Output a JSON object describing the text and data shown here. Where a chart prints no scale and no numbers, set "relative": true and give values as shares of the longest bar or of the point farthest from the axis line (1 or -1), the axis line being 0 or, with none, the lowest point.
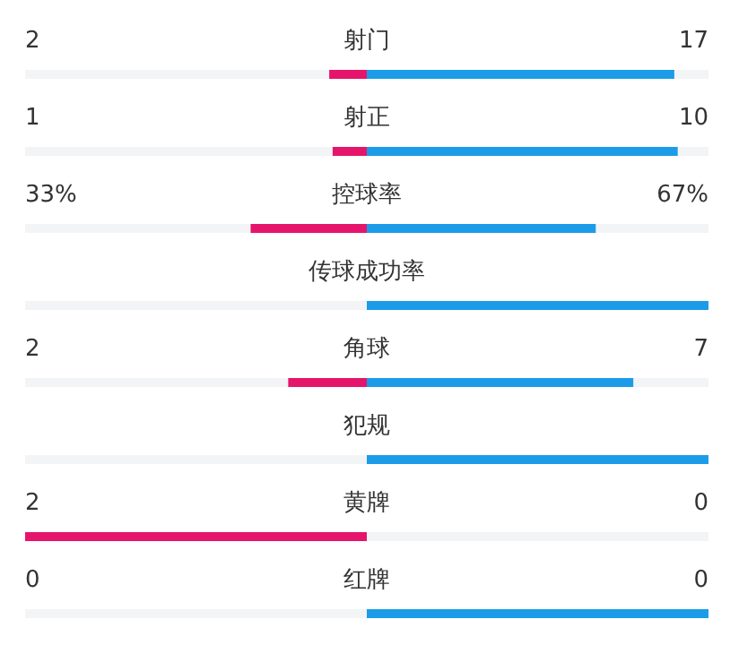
{
  "chart_data": {
    "type": "bar",
    "orientation": "horizontal",
    "relative": true,
    "stacked": true,
    "categories": [
      "射门",
      "射正",
      "控球率",
      "传球成功率",
      "角球",
      "犯规",
      "黄牌",
      "红牌"
    ],
    "series": [
      {
        "color": "#e5156b",
        "values": [
          -0.11,
          -0.1,
          -0.34,
          0,
          -0.23,
          0,
          -1,
          0
        ]
      },
      {
        "color": "#1c9ce8",
        "values": [
          0.9,
          0.91,
          0.67,
          1,
          0.78,
          1,
          0,
          1
        ]
      }
    ],
    "annotations": [
      "2",
      "17",
      "1",
      "10",
      "33%",
      "67%",
      "2",
      "7",
      "2",
      "0",
      "0",
      "0"
    ]
  }
}
